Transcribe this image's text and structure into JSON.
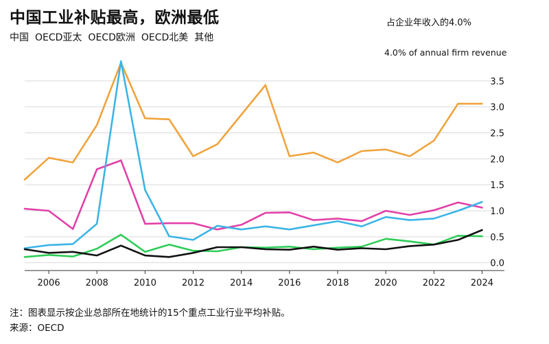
{
  "header": {
    "title": "中国工业补贴最高，欧洲最低",
    "legend": [
      "中国",
      "OECD亚太",
      "OECD欧洲",
      "OECD北美",
      "其他"
    ],
    "unit_cn": "占企业年收入的4.0%",
    "unit_en": "4.0% of annual firm revenue"
  },
  "footer": {
    "note": "注：图表显示按企业总部所在地统计的15个重点工业行业平均补贴。",
    "source": "来源：OECD"
  },
  "chart_data": {
    "type": "line",
    "title": "中国工业补贴最高，欧洲最低",
    "xlabel": "",
    "ylabel": "4.0% of annual firm revenue",
    "x": [
      2005,
      2006,
      2007,
      2008,
      2009,
      2010,
      2011,
      2012,
      2013,
      2014,
      2015,
      2016,
      2017,
      2018,
      2019,
      2020,
      2021,
      2022,
      2023,
      2024
    ],
    "xlim": [
      2005,
      2024.5
    ],
    "ylim": [
      -0.15,
      4.0
    ],
    "x_ticks": [
      2006,
      2008,
      2010,
      2012,
      2014,
      2016,
      2018,
      2020,
      2022,
      2024
    ],
    "y_ticks": [
      0.0,
      0.5,
      1.0,
      1.5,
      2.0,
      2.5,
      3.0,
      3.5
    ],
    "y_tick_labels": [
      "0.0",
      "0.5",
      "1.0",
      "1.5",
      "2.0",
      "2.5",
      "3.0",
      "3.5"
    ],
    "grid": true,
    "series": [
      {
        "color": "#f0a33c",
        "values": [
          1.6,
          2.02,
          1.93,
          2.65,
          3.85,
          2.78,
          2.76,
          2.05,
          2.28,
          2.85,
          3.42,
          2.05,
          2.12,
          1.93,
          2.15,
          2.18,
          2.05,
          2.35,
          3.06,
          3.06
        ]
      },
      {
        "color": "#e23fa8",
        "values": [
          1.04,
          1.0,
          0.65,
          1.8,
          1.97,
          0.75,
          0.76,
          0.76,
          0.64,
          0.73,
          0.96,
          0.97,
          0.82,
          0.85,
          0.8,
          1.0,
          0.92,
          1.01,
          1.16,
          1.06
        ]
      },
      {
        "color": "#3bb4e6",
        "values": [
          0.28,
          0.34,
          0.36,
          0.75,
          3.88,
          1.4,
          0.51,
          0.44,
          0.71,
          0.64,
          0.7,
          0.64,
          0.72,
          0.8,
          0.7,
          0.88,
          0.82,
          0.85,
          1.0,
          1.17
        ]
      },
      {
        "color": "#2ecc57",
        "values": [
          0.11,
          0.15,
          0.12,
          0.27,
          0.54,
          0.21,
          0.35,
          0.23,
          0.22,
          0.3,
          0.29,
          0.31,
          0.26,
          0.29,
          0.31,
          0.46,
          0.41,
          0.35,
          0.52,
          0.51
        ]
      },
      {
        "color": "#111111",
        "values": [
          0.26,
          0.19,
          0.21,
          0.14,
          0.33,
          0.14,
          0.11,
          0.19,
          0.3,
          0.3,
          0.26,
          0.25,
          0.31,
          0.25,
          0.28,
          0.26,
          0.32,
          0.35,
          0.44,
          0.63
        ]
      }
    ]
  }
}
